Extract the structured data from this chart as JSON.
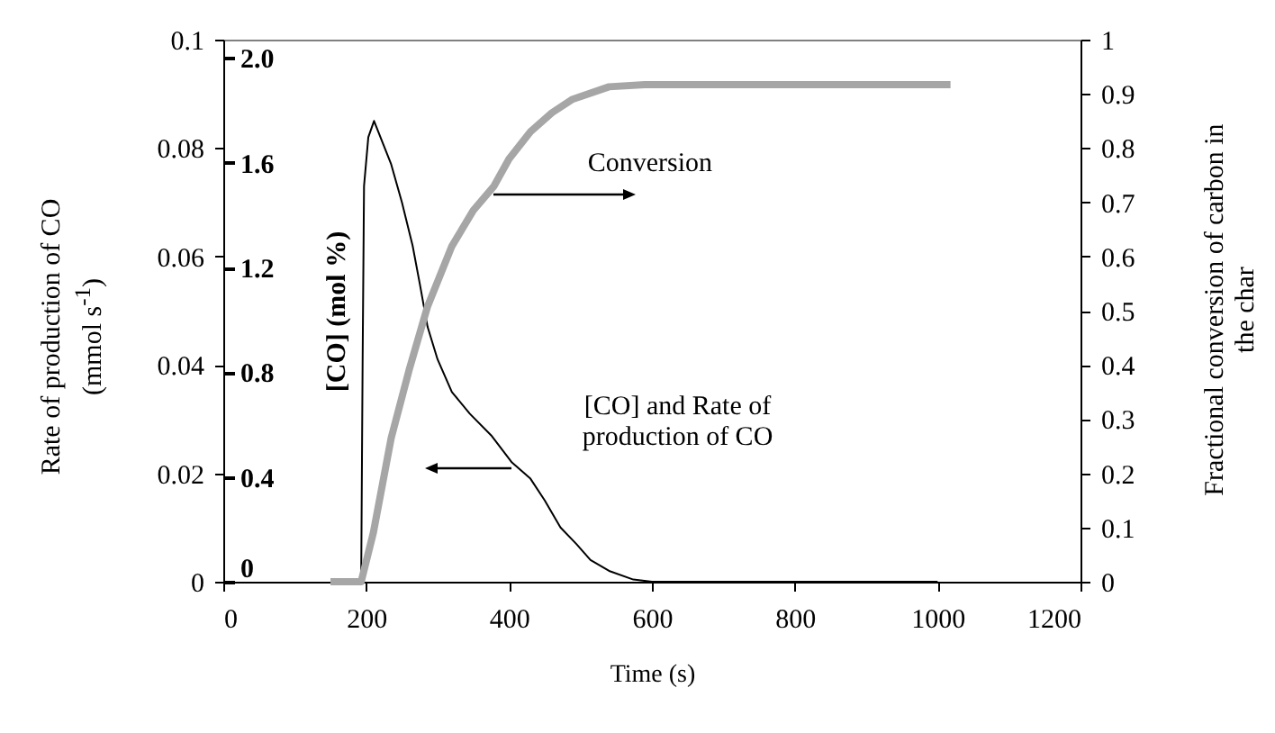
{
  "chart_data": {
    "type": "line",
    "xlabel": "Time (s)",
    "ylabel": "Rate of production of CO (mmol s$^{-1}$)",
    "y2label": "Fractional conversion of carbon in the char",
    "y3label": "[CO] (mol %)",
    "xlim": [
      0,
      1200
    ],
    "xticks": [
      0,
      200,
      400,
      600,
      800,
      1000,
      1200
    ],
    "ylim": [
      0,
      0.1
    ],
    "yticks": [
      0,
      0.02,
      0.04,
      0.06,
      0.08,
      0.1
    ],
    "y2lim": [
      0,
      1
    ],
    "y2ticks": [
      0,
      0.1,
      0.2,
      0.3,
      0.4,
      0.5,
      0.6,
      0.7,
      0.8,
      0.9,
      1
    ],
    "y3lim": [
      0,
      2.07
    ],
    "y3ticks": [
      0,
      {
        "value": 0.4,
        "label": "0.4"
      },
      {
        "value": 0.8,
        "label": "0.8"
      },
      {
        "value": 1.2,
        "label": "1.2"
      },
      {
        "value": 1.6,
        "label": "1.6"
      },
      {
        "value": 2,
        "label": "2.0"
      }
    ],
    "grid": false,
    "marker": "none",
    "line_style": "solid",
    "annotations": [
      {
        "text": "Conversion",
        "x": 378,
        "y": 0.0714
      },
      {
        "text": "[CO] and Rate of production of CO",
        "x": 404,
        "y": 0.021
      }
    ],
    "series": [
      {
        "color": "#000000",
        "x": [
          150,
          193,
          195,
          197,
          203,
          211,
          220,
          235,
          250,
          265,
          275,
          286,
          300,
          320,
          345,
          375,
          404,
          430,
          450,
          472,
          494,
          514,
          540,
          574,
          600,
          800,
          1000
        ],
        "values": [
          0,
          0,
          0.04,
          0.073,
          0.082,
          0.085,
          0.082,
          0.077,
          0.07,
          0.062,
          0.055,
          0.047,
          0.041,
          0.035,
          0.031,
          0.027,
          0.022,
          0.019,
          0.015,
          0.01,
          0.007,
          0.004,
          0.002,
          0.0004,
          0,
          0,
          0
        ]
      },
      {
        "color": "#a6a6a6",
        "axis": "y2",
        "x": [
          150,
          193,
          210,
          235,
          260,
          286,
          320,
          350,
          379,
          400,
          430,
          460,
          489,
          540,
          590,
          1018
        ],
        "values": [
          0,
          0,
          0.09,
          0.265,
          0.39,
          0.508,
          0.619,
          0.685,
          0.73,
          0.78,
          0.83,
          0.865,
          0.89,
          0.913,
          0.917,
          0.917
        ]
      }
    ]
  }
}
